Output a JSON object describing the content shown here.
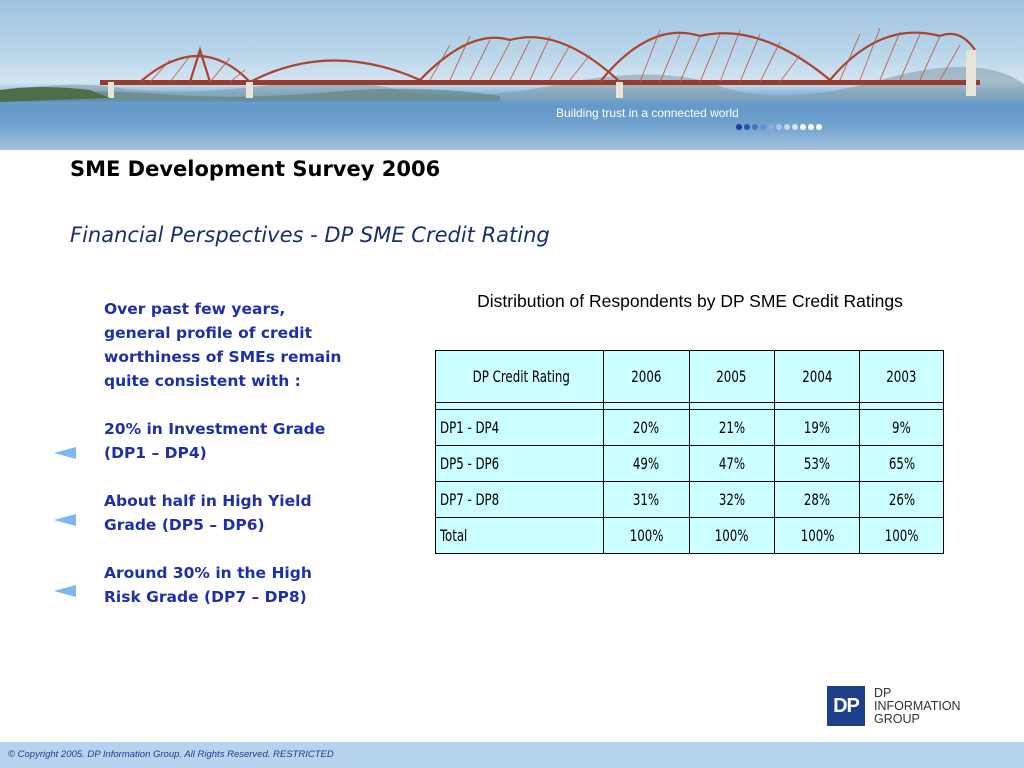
{
  "header": {
    "tagline": "Building trust in a connected world",
    "dot_colors": [
      "#1a3f8f",
      "#2a55a8",
      "#4a72bd",
      "#6a8fcd",
      "#8eabd9",
      "#aec3e3",
      "#c6d6ec",
      "#d8e3f1",
      "#ffffff",
      "#ffffff",
      "#ffffff"
    ]
  },
  "slide": {
    "title": "SME Development Survey 2006",
    "subtitle": "Financial Perspectives  -  DP SME Credit Rating"
  },
  "left_panel": {
    "intro": "Over past few years, general profile of credit worthiness of SMEs remain quite consistent with :",
    "bullets": [
      "20% in Investment Grade (DP1 – DP4)",
      "About half in High Yield Grade (DP5 – DP6)",
      "Around 30% in the High Risk Grade (DP7 – DP8)"
    ],
    "arrow_color": "#7db7ee"
  },
  "table": {
    "caption": "Distribution of Respondents by DP SME Credit Ratings",
    "headers": [
      "DP Credit Rating",
      "2006",
      "2005",
      "2004",
      "2003"
    ],
    "rows": [
      [
        "DP1 - DP4",
        "20%",
        "21%",
        "19%",
        "9%"
      ],
      [
        "DP5 - DP6",
        "49%",
        "47%",
        "53%",
        "65%"
      ],
      [
        "DP7 - DP8",
        "31%",
        "32%",
        "28%",
        "26%"
      ],
      [
        "Total",
        "100%",
        "100%",
        "100%",
        "100%"
      ]
    ],
    "cell_color": "#ccffff"
  },
  "logo": {
    "mark": "DP",
    "lines": [
      "DP",
      "INFORMATION",
      "GROUP"
    ],
    "color": "#1e3f8a"
  },
  "footer": {
    "text": "© Copyright 2005. DP Information Group. All Rights Reserved. RESTRICTED",
    "color": "#b5d2ee"
  }
}
